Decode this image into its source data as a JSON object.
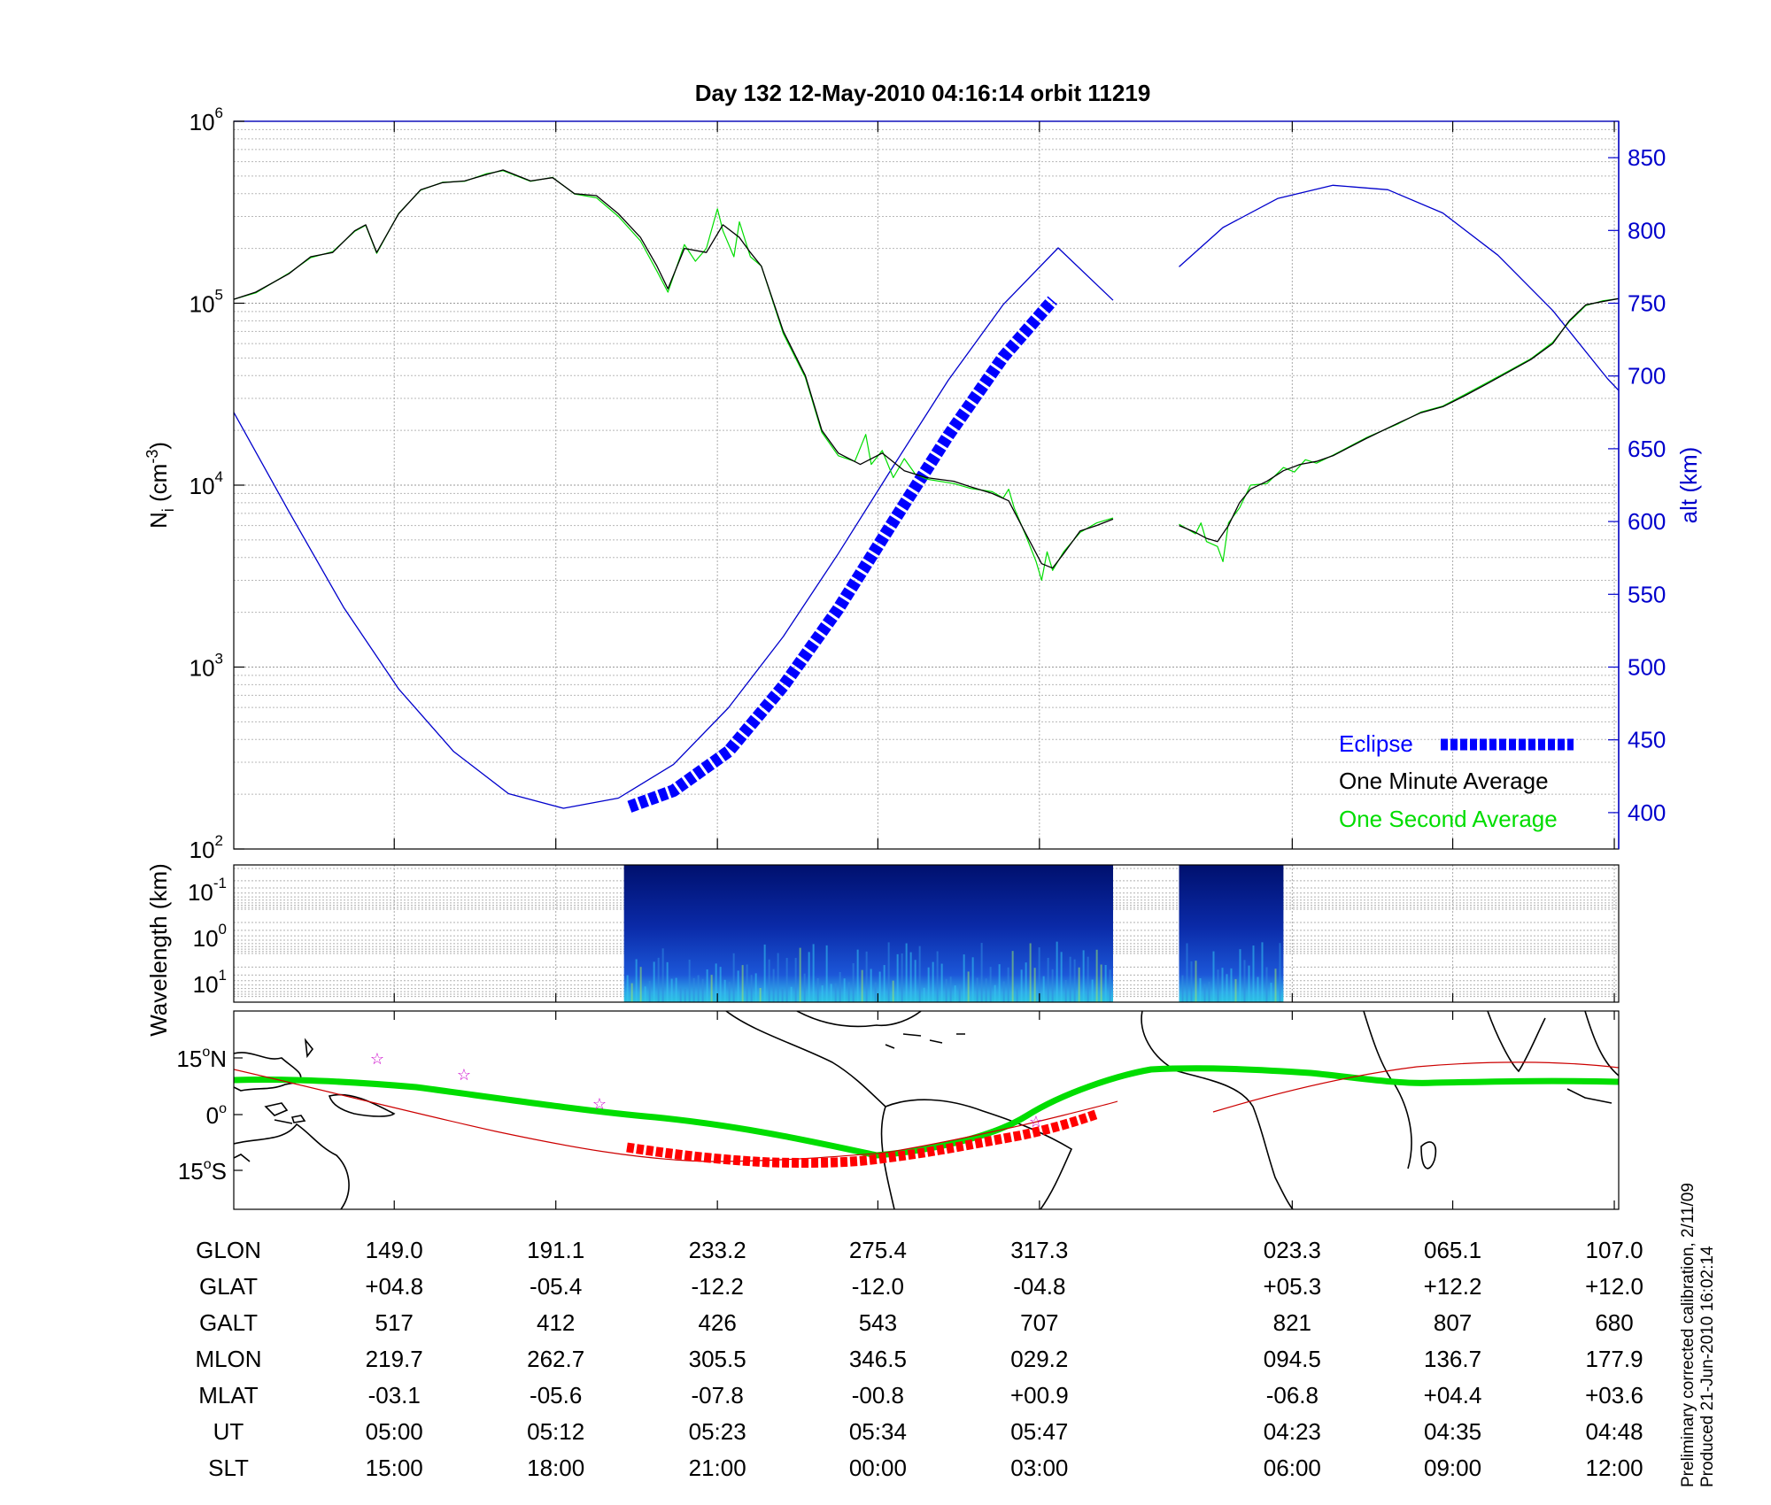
{
  "title": "Day 132  12-May-2010 04:16:14   orbit 11219",
  "side_note": [
    "Preliminary corrected calibration, 2/11/09",
    "Produced 21-Jun-2010 16:02:14"
  ],
  "colors": {
    "ni_1min": "#000000",
    "ni_1sec": "#00dd00",
    "alt": "#0000cc",
    "eclipse": "#0000ff",
    "orbit_track": "#ff0000",
    "mag_equator": "#00dd00",
    "stars": "#cc00cc"
  },
  "chart_data": [
    {
      "type": "line",
      "panel": "density",
      "ylabel_left": "N",
      "ylabel_left_sub": "i",
      "ylabel_left_unit_base": "(cm",
      "ylabel_left_unit_exp": "-3",
      "ylabel_left_unit_end": ")",
      "yscale_left": "log",
      "ylim_left": [
        100,
        1000000
      ],
      "yticks_left": [
        {
          "base": "10",
          "exp": "2"
        },
        {
          "base": "10",
          "exp": "3"
        },
        {
          "base": "10",
          "exp": "4"
        },
        {
          "base": "10",
          "exp": "5"
        },
        {
          "base": "10",
          "exp": "6"
        }
      ],
      "ylabel_right": "alt (km)",
      "ylim_right": [
        375,
        875
      ],
      "yticks_right": [
        "400",
        "450",
        "500",
        "550",
        "600",
        "650",
        "700",
        "750",
        "800",
        "850"
      ],
      "grid": true,
      "legend_position": "lower-right",
      "legend": [
        "Eclipse",
        "One Minute Average",
        "One Second Average"
      ],
      "series": [
        {
          "name": "One Minute Average",
          "axis": "left",
          "segments": [
            [
              [
                0,
                105000
              ],
              [
                0.02,
                115000
              ],
              [
                0.05,
                145000
              ],
              [
                0.07,
                180000
              ],
              [
                0.09,
                190000
              ],
              [
                0.11,
                250000
              ],
              [
                0.12,
                270000
              ],
              [
                0.13,
                190000
              ],
              [
                0.15,
                310000
              ],
              [
                0.17,
                420000
              ],
              [
                0.19,
                460000
              ],
              [
                0.21,
                470000
              ],
              [
                0.23,
                510000
              ],
              [
                0.245,
                540000
              ],
              [
                0.27,
                470000
              ],
              [
                0.29,
                490000
              ],
              [
                0.31,
                400000
              ],
              [
                0.33,
                390000
              ],
              [
                0.35,
                310000
              ],
              [
                0.37,
                230000
              ],
              [
                0.385,
                160000
              ],
              [
                0.395,
                120000
              ],
              [
                0.41,
                200000
              ],
              [
                0.43,
                190000
              ],
              [
                0.445,
                270000
              ],
              [
                0.46,
                230000
              ],
              [
                0.47,
                190000
              ],
              [
                0.48,
                160000
              ],
              [
                0.5,
                70000
              ],
              [
                0.52,
                40000
              ],
              [
                0.535,
                20000
              ],
              [
                0.55,
                15000
              ],
              [
                0.57,
                13000
              ],
              [
                0.59,
                15000
              ],
              [
                0.61,
                12000
              ],
              [
                0.63,
                11000
              ],
              [
                0.655,
                10500
              ],
              [
                0.67,
                9800
              ],
              [
                0.69,
                9000
              ],
              [
                0.705,
                8200
              ],
              [
                0.72,
                5500
              ],
              [
                0.735,
                3700
              ],
              [
                0.745,
                3500
              ],
              [
                0.755,
                4200
              ],
              [
                0.77,
                5600
              ],
              [
                0.785,
                6000
              ],
              [
                0.8,
                6500
              ]
            ],
            [
              [
                0.86,
                6000
              ],
              [
                0.875,
                5500
              ],
              [
                0.885,
                5100
              ],
              [
                0.895,
                4900
              ],
              [
                0.905,
                6000
              ],
              [
                0.915,
                8000
              ],
              [
                0.925,
                9500
              ],
              [
                0.94,
                10500
              ],
              [
                0.955,
                12000
              ],
              [
                0.97,
                13000
              ],
              [
                0.985,
                13500
              ],
              [
                1.0,
                14500
              ],
              [
                1.03,
                18000
              ],
              [
                1.06,
                22000
              ],
              [
                1.08,
                25000
              ],
              [
                1.1,
                27000
              ],
              [
                1.12,
                31000
              ],
              [
                1.14,
                36000
              ],
              [
                1.16,
                42000
              ],
              [
                1.18,
                49000
              ],
              [
                1.2,
                60000
              ],
              [
                1.215,
                80000
              ],
              [
                1.23,
                98000
              ],
              [
                1.245,
                102000
              ],
              [
                1.26,
                106000
              ]
            ]
          ]
        },
        {
          "name": "One Second Average",
          "axis": "left",
          "segments": [
            [
              [
                0,
                105000
              ],
              [
                0.02,
                114000
              ],
              [
                0.05,
                146000
              ],
              [
                0.07,
                178000
              ],
              [
                0.09,
                192000
              ],
              [
                0.11,
                248000
              ],
              [
                0.12,
                268000
              ],
              [
                0.13,
                188000
              ],
              [
                0.15,
                312000
              ],
              [
                0.17,
                418000
              ],
              [
                0.19,
                462000
              ],
              [
                0.21,
                468000
              ],
              [
                0.23,
                515000
              ],
              [
                0.245,
                535000
              ],
              [
                0.27,
                468000
              ],
              [
                0.29,
                492000
              ],
              [
                0.31,
                398000
              ],
              [
                0.33,
                380000
              ],
              [
                0.35,
                300000
              ],
              [
                0.37,
                220000
              ],
              [
                0.385,
                150000
              ],
              [
                0.395,
                115000
              ],
              [
                0.41,
                210000
              ],
              [
                0.42,
                170000
              ],
              [
                0.43,
                200000
              ],
              [
                0.44,
                330000
              ],
              [
                0.445,
                250000
              ],
              [
                0.455,
                180000
              ],
              [
                0.46,
                280000
              ],
              [
                0.47,
                180000
              ],
              [
                0.48,
                160000
              ],
              [
                0.5,
                68000
              ],
              [
                0.52,
                39000
              ],
              [
                0.535,
                19500
              ],
              [
                0.55,
                14500
              ],
              [
                0.565,
                13500
              ],
              [
                0.575,
                19000
              ],
              [
                0.58,
                13000
              ],
              [
                0.59,
                15500
              ],
              [
                0.6,
                11000
              ],
              [
                0.61,
                14000
              ],
              [
                0.62,
                11500
              ],
              [
                0.63,
                10800
              ],
              [
                0.655,
                10200
              ],
              [
                0.67,
                9600
              ],
              [
                0.69,
                9200
              ],
              [
                0.7,
                8500
              ],
              [
                0.705,
                9500
              ],
              [
                0.71,
                7500
              ],
              [
                0.72,
                5400
              ],
              [
                0.73,
                3800
              ],
              [
                0.735,
                3000
              ],
              [
                0.74,
                4300
              ],
              [
                0.745,
                3400
              ],
              [
                0.755,
                4300
              ],
              [
                0.77,
                5500
              ],
              [
                0.785,
                6200
              ],
              [
                0.8,
                6600
              ]
            ],
            [
              [
                0.86,
                6100
              ],
              [
                0.875,
                5400
              ],
              [
                0.88,
                6200
              ],
              [
                0.885,
                4900
              ],
              [
                0.895,
                4600
              ],
              [
                0.9,
                3800
              ],
              [
                0.905,
                6200
              ],
              [
                0.915,
                7500
              ],
              [
                0.925,
                10000
              ],
              [
                0.94,
                10200
              ],
              [
                0.955,
                12500
              ],
              [
                0.965,
                11800
              ],
              [
                0.975,
                13800
              ],
              [
                0.985,
                13200
              ],
              [
                1.0,
                14600
              ],
              [
                1.03,
                18200
              ],
              [
                1.06,
                21800
              ],
              [
                1.08,
                25200
              ],
              [
                1.1,
                27200
              ],
              [
                1.12,
                31500
              ],
              [
                1.14,
                36500
              ],
              [
                1.16,
                42500
              ],
              [
                1.18,
                49500
              ],
              [
                1.2,
                61000
              ],
              [
                1.215,
                79000
              ],
              [
                1.23,
                97000
              ],
              [
                1.245,
                103000
              ],
              [
                1.26,
                106000
              ]
            ]
          ]
        },
        {
          "name": "Altitude",
          "axis": "right",
          "segments": [
            [
              [
                0,
                675
              ],
              [
                0.05,
                607
              ],
              [
                0.1,
                541
              ],
              [
                0.15,
                485
              ],
              [
                0.2,
                442
              ],
              [
                0.25,
                413
              ],
              [
                0.3,
                403
              ],
              [
                0.35,
                410
              ],
              [
                0.4,
                433
              ],
              [
                0.45,
                472
              ],
              [
                0.5,
                521
              ],
              [
                0.55,
                578
              ],
              [
                0.6,
                638
              ],
              [
                0.65,
                697
              ],
              [
                0.7,
                749
              ],
              [
                0.75,
                788
              ],
              [
                0.8,
                752
              ]
            ],
            [
              [
                0.86,
                775
              ],
              [
                0.9,
                802
              ],
              [
                0.95,
                822
              ],
              [
                1.0,
                831
              ],
              [
                1.05,
                828
              ],
              [
                1.1,
                812
              ],
              [
                1.15,
                783
              ],
              [
                1.2,
                745
              ],
              [
                1.25,
                698
              ],
              [
                1.26,
                690
              ]
            ]
          ]
        },
        {
          "name": "Eclipse",
          "axis": "right",
          "segments": [
            [
              [
                0.36,
                404
              ],
              [
                0.4,
                415
              ],
              [
                0.45,
                442
              ],
              [
                0.5,
                487
              ],
              [
                0.55,
                540
              ],
              [
                0.6,
                600
              ],
              [
                0.65,
                659
              ],
              [
                0.7,
                713
              ],
              [
                0.745,
                752
              ]
            ]
          ]
        }
      ]
    },
    {
      "type": "heatmap",
      "panel": "spectrogram",
      "ylabel": "Wavelength (km)",
      "yscale": "log",
      "yticks": [
        {
          "base": "10",
          "exp": "-1"
        },
        {
          "base": "10",
          "exp": "0"
        },
        {
          "base": "10",
          "exp": "1"
        }
      ],
      "data_blocks": [
        [
          0.355,
          0.8
        ],
        [
          0.86,
          0.955
        ]
      ]
    },
    {
      "type": "map",
      "panel": "ground_track",
      "yticks": [
        {
          "deg": "15",
          "hem": "N"
        },
        {
          "deg": "0",
          "hem": ""
        },
        {
          "deg": "15",
          "hem": "S"
        }
      ],
      "ylim": [
        -25,
        25
      ]
    }
  ],
  "x_table": {
    "positions": [
      0.146,
      0.293,
      0.44,
      0.586,
      0.733,
      0.963,
      1.109,
      1.256
    ],
    "rows": [
      {
        "name": "GLON",
        "values": [
          "149.0",
          "191.1",
          "233.2",
          "275.4",
          "317.3",
          "023.3",
          "065.1",
          "107.0"
        ]
      },
      {
        "name": "GLAT",
        "values": [
          "+04.8",
          "-05.4",
          "-12.2",
          "-12.0",
          "-04.8",
          "+05.3",
          "+12.2",
          "+12.0"
        ]
      },
      {
        "name": "GALT",
        "values": [
          "517",
          "412",
          "426",
          "543",
          "707",
          "821",
          "807",
          "680"
        ]
      },
      {
        "name": "MLON",
        "values": [
          "219.7",
          "262.7",
          "305.5",
          "346.5",
          "029.2",
          "094.5",
          "136.7",
          "177.9"
        ]
      },
      {
        "name": "MLAT",
        "values": [
          "-03.1",
          "-05.6",
          "-07.8",
          "-00.8",
          "+00.9",
          "-06.8",
          "+04.4",
          "+03.6"
        ]
      },
      {
        "name": "UT",
        "values": [
          "05:00",
          "05:12",
          "05:23",
          "05:34",
          "05:47",
          "04:23",
          "04:35",
          "04:48"
        ]
      },
      {
        "name": "SLT",
        "values": [
          "15:00",
          "18:00",
          "21:00",
          "00:00",
          "03:00",
          "06:00",
          "09:00",
          "12:00"
        ]
      }
    ]
  }
}
